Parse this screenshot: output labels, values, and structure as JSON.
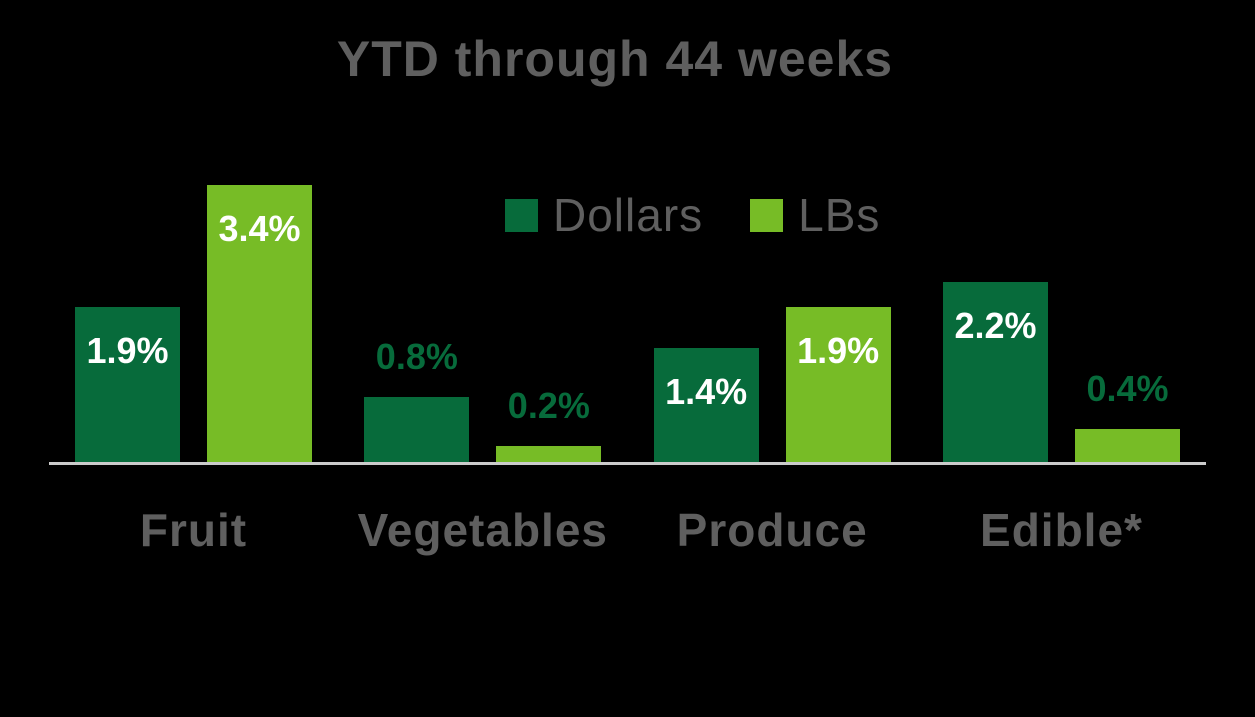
{
  "background_color": "#000000",
  "text_color": "#5f5f5f",
  "axis_color": "#cbcbcb",
  "chart_data": {
    "type": "bar",
    "title": "YTD through 44 weeks",
    "categories": [
      "Fruit",
      "Vegetables",
      "Produce",
      "Edible*"
    ],
    "series": [
      {
        "name": "Dollars",
        "color": "#076b3b",
        "values": [
          1.9,
          0.8,
          1.4,
          2.2
        ],
        "labels": [
          "1.9%",
          "0.8%",
          "1.4%",
          "2.2%"
        ]
      },
      {
        "name": "LBs",
        "color": "#77bc26",
        "values": [
          3.4,
          0.2,
          1.9,
          0.4
        ],
        "labels": [
          "3.4%",
          "0.2%",
          "1.9%",
          "0.4%"
        ]
      }
    ],
    "value_suffix": "%",
    "ylim": [
      0,
      3.6
    ],
    "grid": false,
    "legend_position": "top-center",
    "label_style": {
      "inside_color": "#ffffff",
      "outside_color": "#076b3b",
      "inside_threshold": 1.0
    }
  }
}
